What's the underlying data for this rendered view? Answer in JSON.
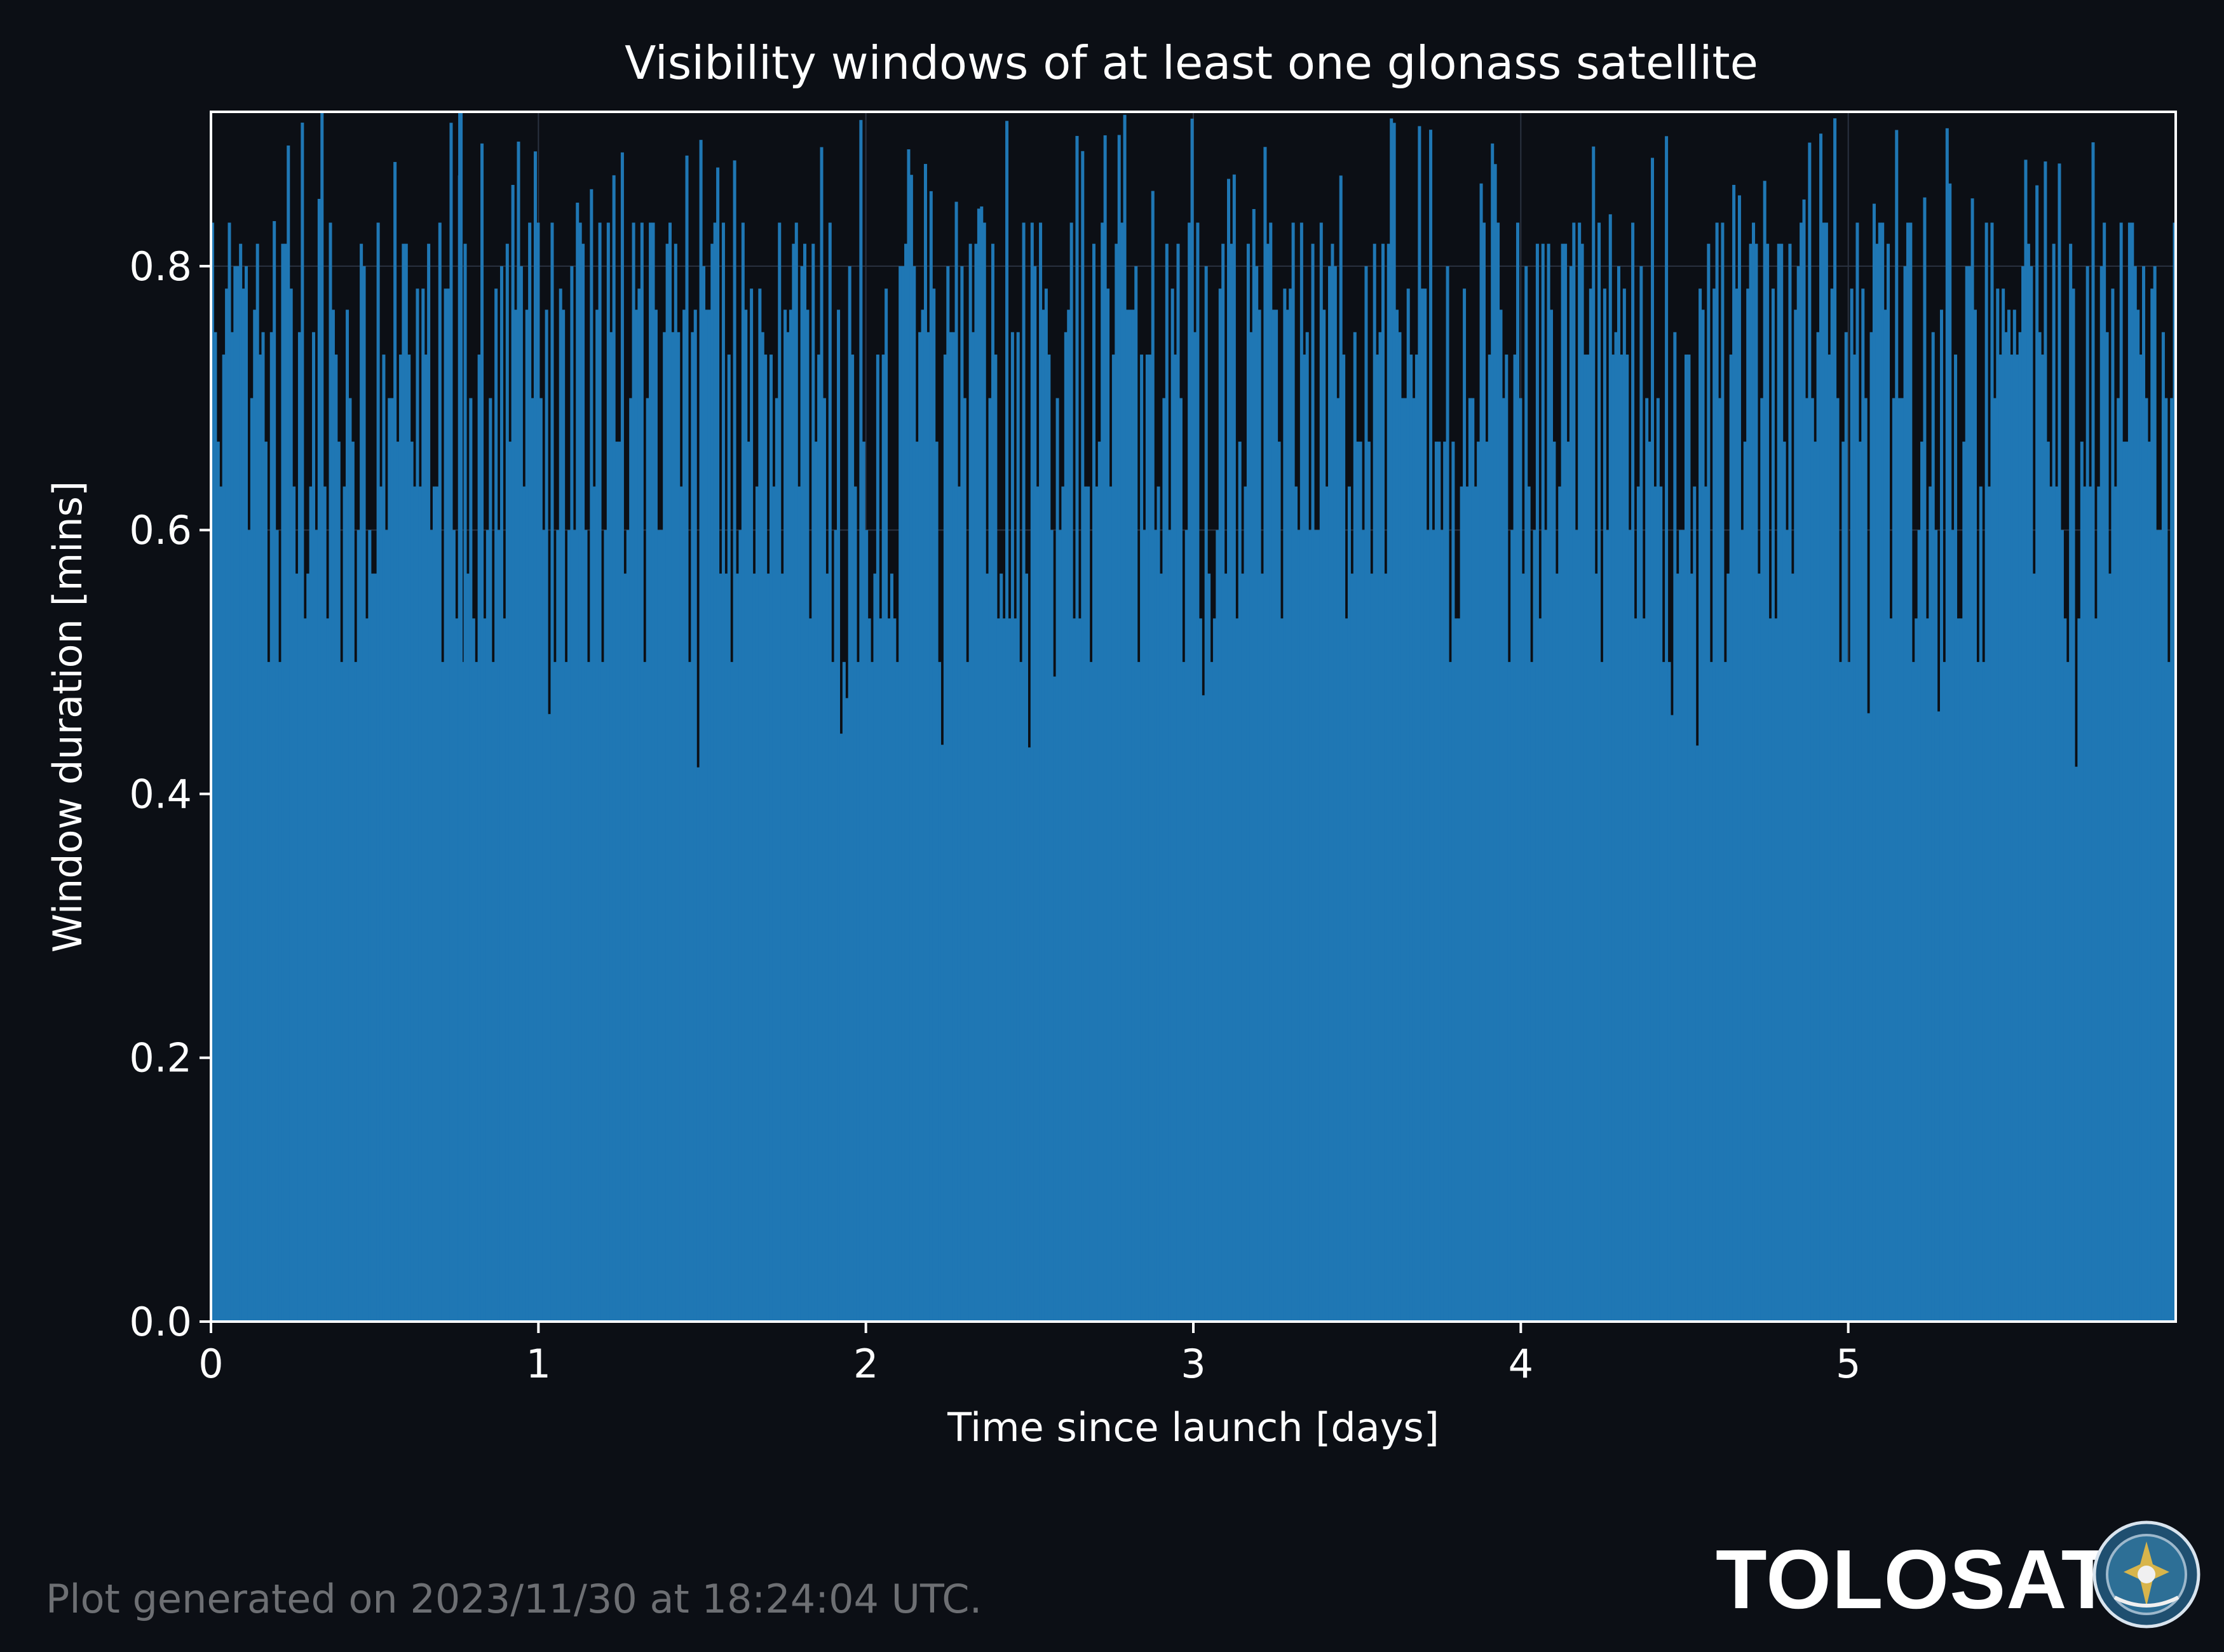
{
  "chart_data": {
    "type": "bar",
    "title": "Visibility windows of at least one glonass satellite",
    "xlabel": "Time since launch [days]",
    "ylabel": "Window duration [mins]",
    "xlim": [
      0,
      6.0
    ],
    "ylim": [
      0,
      0.917
    ],
    "xticks": [
      "0",
      "1",
      "2",
      "3",
      "4",
      "5"
    ],
    "yticks": [
      "0.0",
      "0.2",
      "0.4",
      "0.6",
      "0.8"
    ],
    "grid": true,
    "bar_color": "#1f77b4",
    "window_count": 700,
    "duration_range": [
      0.417,
      0.917
    ],
    "typical_duration_range": [
      0.5,
      0.833
    ],
    "max_window": {
      "x": 0.755,
      "y": 0.917
    }
  },
  "footer": {
    "generated": "Plot generated on 2023/11/30 at 18:24:04 UTC."
  },
  "brand": {
    "name": "TOLOSAT",
    "seal_icon": "tolosat-seal-icon"
  },
  "colors": {
    "background": "#0c0f15",
    "bars": "#1f77b4",
    "text": "#ffffff",
    "footer_text": "#6d6f73"
  }
}
